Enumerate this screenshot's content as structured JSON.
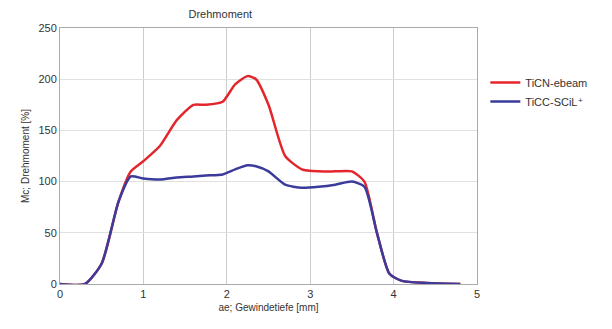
{
  "chart_data": {
    "type": "line",
    "title": "Drehmoment",
    "x_label": "ae; Gewindetiefe [mm]",
    "y_label": "Mc; Drehmoment [%]",
    "x": [
      0,
      0.3,
      0.5,
      0.7,
      0.85,
      1.0,
      1.2,
      1.4,
      1.6,
      1.75,
      1.95,
      2.1,
      2.25,
      2.35,
      2.5,
      2.7,
      2.9,
      3.1,
      3.3,
      3.5,
      3.65,
      3.8,
      3.95,
      4.1,
      4.4,
      4.8
    ],
    "series": [
      {
        "name": "TiCN-ebeam",
        "color": "#e3262b",
        "values": [
          0,
          0,
          20,
          80,
          110,
          120,
          135,
          160,
          175,
          175,
          178,
          195,
          203,
          200,
          175,
          125,
          112,
          110,
          110,
          110,
          100,
          50,
          10,
          3,
          1,
          0
        ]
      },
      {
        "name": "TiCC-SCiL⁺",
        "color": "#3b3b9c",
        "values": [
          0,
          0,
          20,
          80,
          105,
          103,
          102,
          104,
          105,
          106,
          107,
          112,
          116,
          115,
          110,
          97,
          94,
          95,
          97,
          100,
          95,
          50,
          10,
          3,
          1,
          0
        ]
      }
    ],
    "xlim": [
      0,
      5
    ],
    "xticks": [
      0,
      1,
      2,
      3,
      4,
      5
    ],
    "ylim": [
      0,
      250
    ],
    "yticks": [
      0,
      50,
      100,
      150,
      200,
      250
    ],
    "grid": true,
    "legend": "right"
  }
}
